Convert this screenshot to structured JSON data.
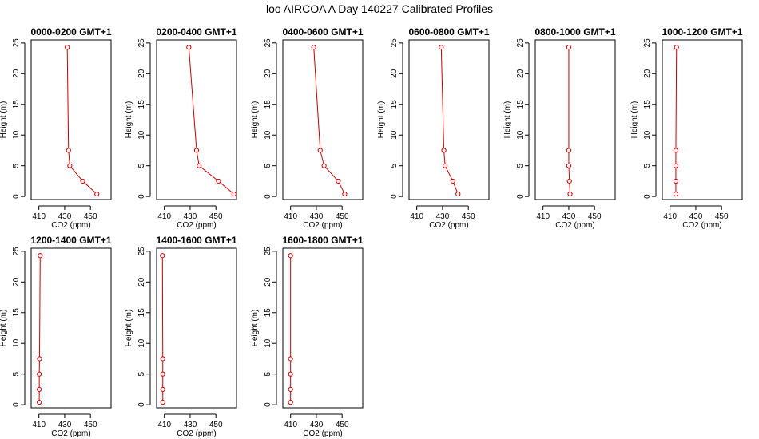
{
  "figure": {
    "title": "loo AIRCOA A  Day 140227  Calibrated Profiles"
  },
  "colors": {
    "series": "#cc0000",
    "axis": "#000000",
    "background": "#ffffff"
  },
  "chart_data": [
    {
      "type": "line",
      "title": "0000-0200 GMT+1",
      "xlabel": "CO2 (ppm)",
      "ylabel": "Height (m)",
      "xlim": [
        404,
        466
      ],
      "ylim": [
        -0.5,
        25.5
      ],
      "xticks": [
        410,
        430,
        450
      ],
      "xtick_labels": [
        "410",
        "430",
        "450"
      ],
      "yticks": [
        0,
        5,
        10,
        15,
        20,
        25
      ],
      "grid": false,
      "series": [
        {
          "x": [
            432,
            433,
            434,
            444,
            455
          ],
          "y": [
            24.3,
            7.5,
            5,
            2.5,
            0.4
          ]
        }
      ]
    },
    {
      "type": "line",
      "title": "0200-0400 GMT+1",
      "xlabel": "CO2 (ppm)",
      "ylabel": "Height (m)",
      "xlim": [
        404,
        466
      ],
      "ylim": [
        -0.5,
        25.5
      ],
      "xticks": [
        410,
        430,
        450
      ],
      "xtick_labels": [
        "410",
        "430",
        "450"
      ],
      "yticks": [
        0,
        5,
        10,
        15,
        20,
        25
      ],
      "grid": false,
      "series": [
        {
          "x": [
            429,
            435,
            437,
            452,
            464
          ],
          "y": [
            24.3,
            7.5,
            5,
            2.5,
            0.4
          ]
        }
      ]
    },
    {
      "type": "line",
      "title": "0400-0600 GMT+1",
      "xlabel": "CO2 (ppm)",
      "ylabel": "Height (m)",
      "xlim": [
        404,
        466
      ],
      "ylim": [
        -0.5,
        25.5
      ],
      "xticks": [
        410,
        430,
        450
      ],
      "xtick_labels": [
        "410",
        "430",
        "450"
      ],
      "yticks": [
        0,
        5,
        10,
        15,
        20,
        25
      ],
      "grid": false,
      "series": [
        {
          "x": [
            428,
            433,
            436,
            447,
            452
          ],
          "y": [
            24.3,
            7.5,
            5,
            2.5,
            0.4
          ]
        }
      ]
    },
    {
      "type": "line",
      "title": "0600-0800 GMT+1",
      "xlabel": "CO2 (ppm)",
      "ylabel": "Height (m)",
      "xlim": [
        404,
        466
      ],
      "ylim": [
        -0.5,
        25.5
      ],
      "xticks": [
        410,
        430,
        450
      ],
      "xtick_labels": [
        "410",
        "430",
        "450"
      ],
      "yticks": [
        0,
        5,
        10,
        15,
        20,
        25
      ],
      "grid": false,
      "series": [
        {
          "x": [
            429,
            431,
            432,
            438,
            442
          ],
          "y": [
            24.3,
            7.5,
            5,
            2.5,
            0.4
          ]
        }
      ]
    },
    {
      "type": "line",
      "title": "0800-1000 GMT+1",
      "xlabel": "CO2 (ppm)",
      "ylabel": "Height (m)",
      "xlim": [
        404,
        466
      ],
      "ylim": [
        -0.5,
        25.5
      ],
      "xticks": [
        410,
        430,
        450
      ],
      "xtick_labels": [
        "410",
        "430",
        "450"
      ],
      "yticks": [
        0,
        5,
        10,
        15,
        20,
        25
      ],
      "grid": false,
      "series": [
        {
          "x": [
            430,
            430,
            430,
            430.5,
            431
          ],
          "y": [
            24.3,
            7.5,
            5,
            2.5,
            0.4
          ]
        }
      ]
    },
    {
      "type": "line",
      "title": "1000-1200 GMT+1",
      "xlabel": "CO2 (ppm)",
      "ylabel": "Height (m)",
      "xlim": [
        404,
        466
      ],
      "ylim": [
        -0.5,
        25.5
      ],
      "xticks": [
        410,
        430,
        450
      ],
      "xtick_labels": [
        "410",
        "430",
        "450"
      ],
      "yticks": [
        0,
        5,
        10,
        15,
        20,
        25
      ],
      "grid": false,
      "series": [
        {
          "x": [
            415,
            414.5,
            414.5,
            414.5,
            414.5
          ],
          "y": [
            24.3,
            7.5,
            5,
            2.5,
            0.4
          ]
        }
      ]
    },
    {
      "type": "line",
      "title": "1200-1400 GMT+1",
      "xlabel": "CO2 (ppm)",
      "ylabel": "Height (m)",
      "xlim": [
        404,
        466
      ],
      "ylim": [
        -0.5,
        25.5
      ],
      "xticks": [
        410,
        430,
        450
      ],
      "xtick_labels": [
        "410",
        "430",
        "450"
      ],
      "yticks": [
        0,
        5,
        10,
        15,
        20,
        25
      ],
      "grid": false,
      "series": [
        {
          "x": [
            411,
            410.5,
            410.3,
            410.3,
            410.3
          ],
          "y": [
            24.3,
            7.5,
            5,
            2.5,
            0.4
          ]
        }
      ]
    },
    {
      "type": "line",
      "title": "1400-1600 GMT+1",
      "xlabel": "CO2 (ppm)",
      "ylabel": "Height (m)",
      "xlim": [
        404,
        466
      ],
      "ylim": [
        -0.5,
        25.5
      ],
      "xticks": [
        410,
        430,
        450
      ],
      "xtick_labels": [
        "410",
        "430",
        "450"
      ],
      "yticks": [
        0,
        5,
        10,
        15,
        20,
        25
      ],
      "grid": false,
      "series": [
        {
          "x": [
            408.5,
            408.8,
            408.8,
            408.8,
            408.8
          ],
          "y": [
            24.3,
            7.5,
            5,
            2.5,
            0.4
          ]
        }
      ]
    },
    {
      "type": "line",
      "title": "1600-1800 GMT+1",
      "xlabel": "CO2 (ppm)",
      "ylabel": "Height (m)",
      "xlim": [
        404,
        466
      ],
      "ylim": [
        -0.5,
        25.5
      ],
      "xticks": [
        410,
        430,
        450
      ],
      "xtick_labels": [
        "410",
        "430",
        "450"
      ],
      "yticks": [
        0,
        5,
        10,
        15,
        20,
        25
      ],
      "grid": false,
      "series": [
        {
          "x": [
            410,
            410,
            410,
            410,
            410
          ],
          "y": [
            24.3,
            7.5,
            5,
            2.5,
            0.4
          ]
        }
      ]
    }
  ]
}
